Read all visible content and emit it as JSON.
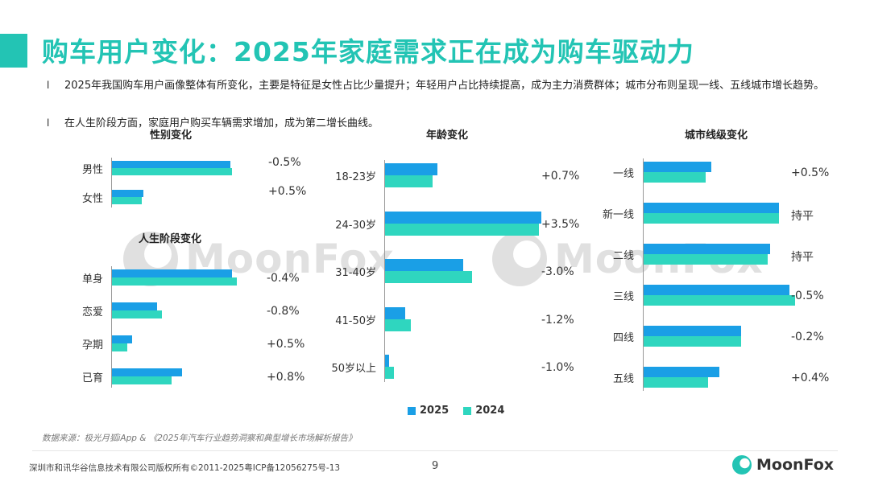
{
  "title": "购车用户变化：2025年家庭需求正在成为购车驱动力",
  "bullets": [
    "2025年我国购车用户画像整体有所变化，主要是特征是女性占比少量提升；年轻用户占比持续提高，成为主力消费群体；城市分布则呈现一线、五线城市增长趋势。",
    "在人生阶段方面，家庭用户购买车辆需求增加，成为第二增长曲线。"
  ],
  "bullet_mark": "l",
  "legend": [
    "2025",
    "2024"
  ],
  "colors": {
    "s2025": "#1a9fe6",
    "s2024": "#2fd6bf",
    "accent": "#23c4b4"
  },
  "charts": {
    "gender": {
      "title": "性别变化",
      "categories": [
        "男性",
        "女性"
      ],
      "v2025": [
        47.5,
        12.5
      ],
      "v2024": [
        48.0,
        12.0
      ],
      "changes": [
        "-0.5%",
        "+0.5%"
      ]
    },
    "life": {
      "title": "人生阶段变化",
      "categories": [
        "单身",
        "恋爱",
        "孕期",
        "已育"
      ],
      "v2025": [
        48.0,
        18.0,
        8.0,
        28.0
      ],
      "v2024": [
        50.0,
        20.0,
        6.0,
        24.0
      ],
      "changes": [
        "-0.4%",
        "-0.8%",
        "+0.5%",
        "+0.8%"
      ]
    },
    "age": {
      "title": "年龄变化",
      "categories": [
        "18-23岁",
        "24-30岁",
        "31-40岁",
        "41-50岁",
        "50岁以上"
      ],
      "v2025": [
        18.0,
        54.0,
        27.0,
        7.0,
        1.5
      ],
      "v2024": [
        16.5,
        53.0,
        30.0,
        9.0,
        3.0
      ],
      "changes": [
        "+0.7%",
        "+3.5%",
        "-3.0%",
        "-1.2%",
        "-1.0%"
      ]
    },
    "city": {
      "title": "城市线级变化",
      "categories": [
        "一线",
        "新一线",
        "二线",
        "三线",
        "四线",
        "五线"
      ],
      "v2025": [
        12.5,
        25.0,
        23.5,
        27.0,
        18.0,
        14.0
      ],
      "v2024": [
        11.5,
        25.0,
        23.0,
        28.0,
        18.0,
        12.0
      ],
      "changes": [
        "+0.5%",
        "持平",
        "持平",
        "-0.5%",
        "-0.2%",
        "+0.4%"
      ]
    }
  },
  "chart_data": [
    {
      "type": "bar",
      "title": "性别变化",
      "categories": [
        "男性",
        "女性"
      ],
      "series": [
        {
          "name": "2025",
          "values": [
            47.5,
            12.5
          ]
        },
        {
          "name": "2024",
          "values": [
            48.0,
            12.0
          ]
        }
      ],
      "annotations": [
        "-0.5%",
        "+0.5%"
      ]
    },
    {
      "type": "bar",
      "title": "人生阶段变化",
      "categories": [
        "单身",
        "恋爱",
        "孕期",
        "已育"
      ],
      "series": [
        {
          "name": "2025",
          "values": [
            48.0,
            18.0,
            8.0,
            28.0
          ]
        },
        {
          "name": "2024",
          "values": [
            50.0,
            20.0,
            6.0,
            24.0
          ]
        }
      ],
      "annotations": [
        "-0.4%",
        "-0.8%",
        "+0.5%",
        "+0.8%"
      ]
    },
    {
      "type": "bar",
      "title": "年龄变化",
      "categories": [
        "18-23岁",
        "24-30岁",
        "31-40岁",
        "41-50岁",
        "50岁以上"
      ],
      "series": [
        {
          "name": "2025",
          "values": [
            18.0,
            54.0,
            27.0,
            7.0,
            1.5
          ]
        },
        {
          "name": "2024",
          "values": [
            16.5,
            53.0,
            30.0,
            9.0,
            3.0
          ]
        }
      ],
      "annotations": [
        "+0.7%",
        "+3.5%",
        "-3.0%",
        "-1.2%",
        "-1.0%"
      ]
    },
    {
      "type": "bar",
      "title": "城市线级变化",
      "categories": [
        "一线",
        "新一线",
        "二线",
        "三线",
        "四线",
        "五线"
      ],
      "series": [
        {
          "name": "2025",
          "values": [
            12.5,
            25.0,
            23.5,
            27.0,
            18.0,
            14.0
          ]
        },
        {
          "name": "2024",
          "values": [
            11.5,
            25.0,
            23.0,
            28.0,
            18.0,
            12.0
          ]
        }
      ],
      "annotations": [
        "+0.5%",
        "持平",
        "持平",
        "-0.5%",
        "-0.2%",
        "+0.4%"
      ]
    }
  ],
  "source": "数据来源：极光月狐iApp & 《2025年汽车行业趋势洞察和典型增长市场解析报告》",
  "footer": "深圳市和讯华谷信息技术有限公司版权所有©2011-2025粤ICP备12056275号-13",
  "page": "9",
  "logo_text": "MoonFox",
  "watermark_text": "MoonFox"
}
